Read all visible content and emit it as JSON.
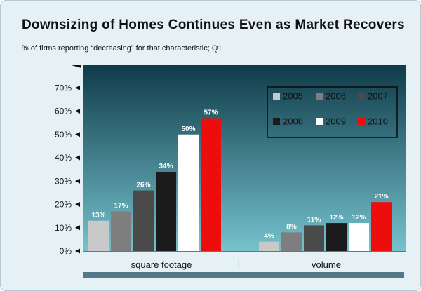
{
  "header": {
    "title": "Downsizing of Homes Continues Even as Market Recovers",
    "subtitle": "% of firms reporting “decreasing” for that characteristic; Q1"
  },
  "colors": {
    "plot_top": "#0f3b49",
    "plot_bottom": "#76c3ce",
    "page_bg": "#e6f1f6",
    "footer_bar": "#527985",
    "series": [
      "#c9c9c9",
      "#7e7e7e",
      "#4a4a4a",
      "#1b1b1b",
      "#ffffff",
      "#ee0d0d"
    ]
  },
  "chart_data": {
    "type": "bar",
    "title": "Downsizing of Homes Continues Even as Market Recovers",
    "subtitle": "% of firms reporting “decreasing” for that characteristic; Q1",
    "categories": [
      "square footage",
      "volume"
    ],
    "series": [
      {
        "name": "2005",
        "values": [
          13,
          4
        ],
        "labels": [
          "13%",
          "4%"
        ]
      },
      {
        "name": "2006",
        "values": [
          17,
          8
        ],
        "labels": [
          "17%",
          "8%"
        ]
      },
      {
        "name": "2007",
        "values": [
          26,
          11
        ],
        "labels": [
          "26%",
          "11%"
        ]
      },
      {
        "name": "2008",
        "values": [
          34,
          12
        ],
        "labels": [
          "34%",
          "12%"
        ]
      },
      {
        "name": "2009",
        "values": [
          50,
          12
        ],
        "labels": [
          "50%",
          "12%"
        ]
      },
      {
        "name": "2010",
        "values": [
          57,
          21
        ],
        "labels": [
          "57%",
          "21%"
        ]
      }
    ],
    "yticks": [
      0,
      10,
      20,
      30,
      40,
      50,
      60,
      70
    ],
    "ytick_labels": [
      "0%",
      "10%",
      "20%",
      "30%",
      "40%",
      "50%",
      "60%",
      "70%"
    ],
    "ylim": [
      0,
      80
    ],
    "legend_position": "top-right",
    "grid": false
  }
}
